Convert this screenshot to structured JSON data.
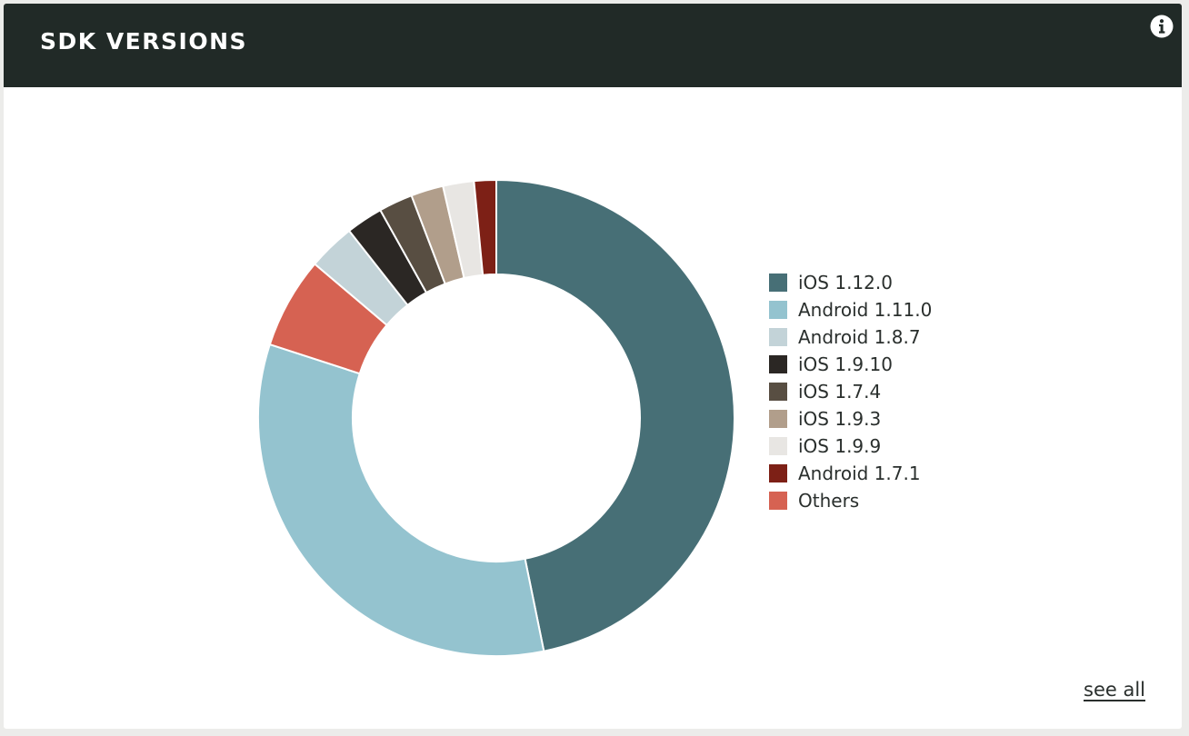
{
  "panel": {
    "title": "SDK VERSIONS",
    "info_icon": "info-icon",
    "see_all_label": "see all"
  },
  "chart_data": {
    "type": "pie",
    "donut": true,
    "legend_placement": "right",
    "categories": [
      "iOS 1.12.0",
      "Android 1.11.0",
      "Android 1.8.7",
      "iOS 1.9.10",
      "iOS 1.7.4",
      "iOS 1.9.3",
      "iOS 1.9.9",
      "Android 1.7.1",
      "Others"
    ],
    "values": [
      46.8,
      33.2,
      3.2,
      2.5,
      2.3,
      2.2,
      2.1,
      1.5,
      6.2
    ],
    "slice_order": [
      "iOS 1.12.0",
      "Android 1.11.0",
      "Others",
      "Android 1.8.7",
      "iOS 1.9.10",
      "iOS 1.7.4",
      "iOS 1.9.3",
      "iOS 1.9.9",
      "Android 1.7.1"
    ],
    "colors": {
      "iOS 1.12.0": "#476f76",
      "Android 1.11.0": "#94c3cf",
      "Android 1.8.7": "#c3d3d8",
      "iOS 1.9.10": "#2b2724",
      "iOS 1.7.4": "#584e42",
      "iOS 1.9.3": "#b19e8b",
      "iOS 1.9.9": "#e8e6e3",
      "Android 1.7.1": "#7d2016",
      "Others": "#d66252"
    }
  }
}
